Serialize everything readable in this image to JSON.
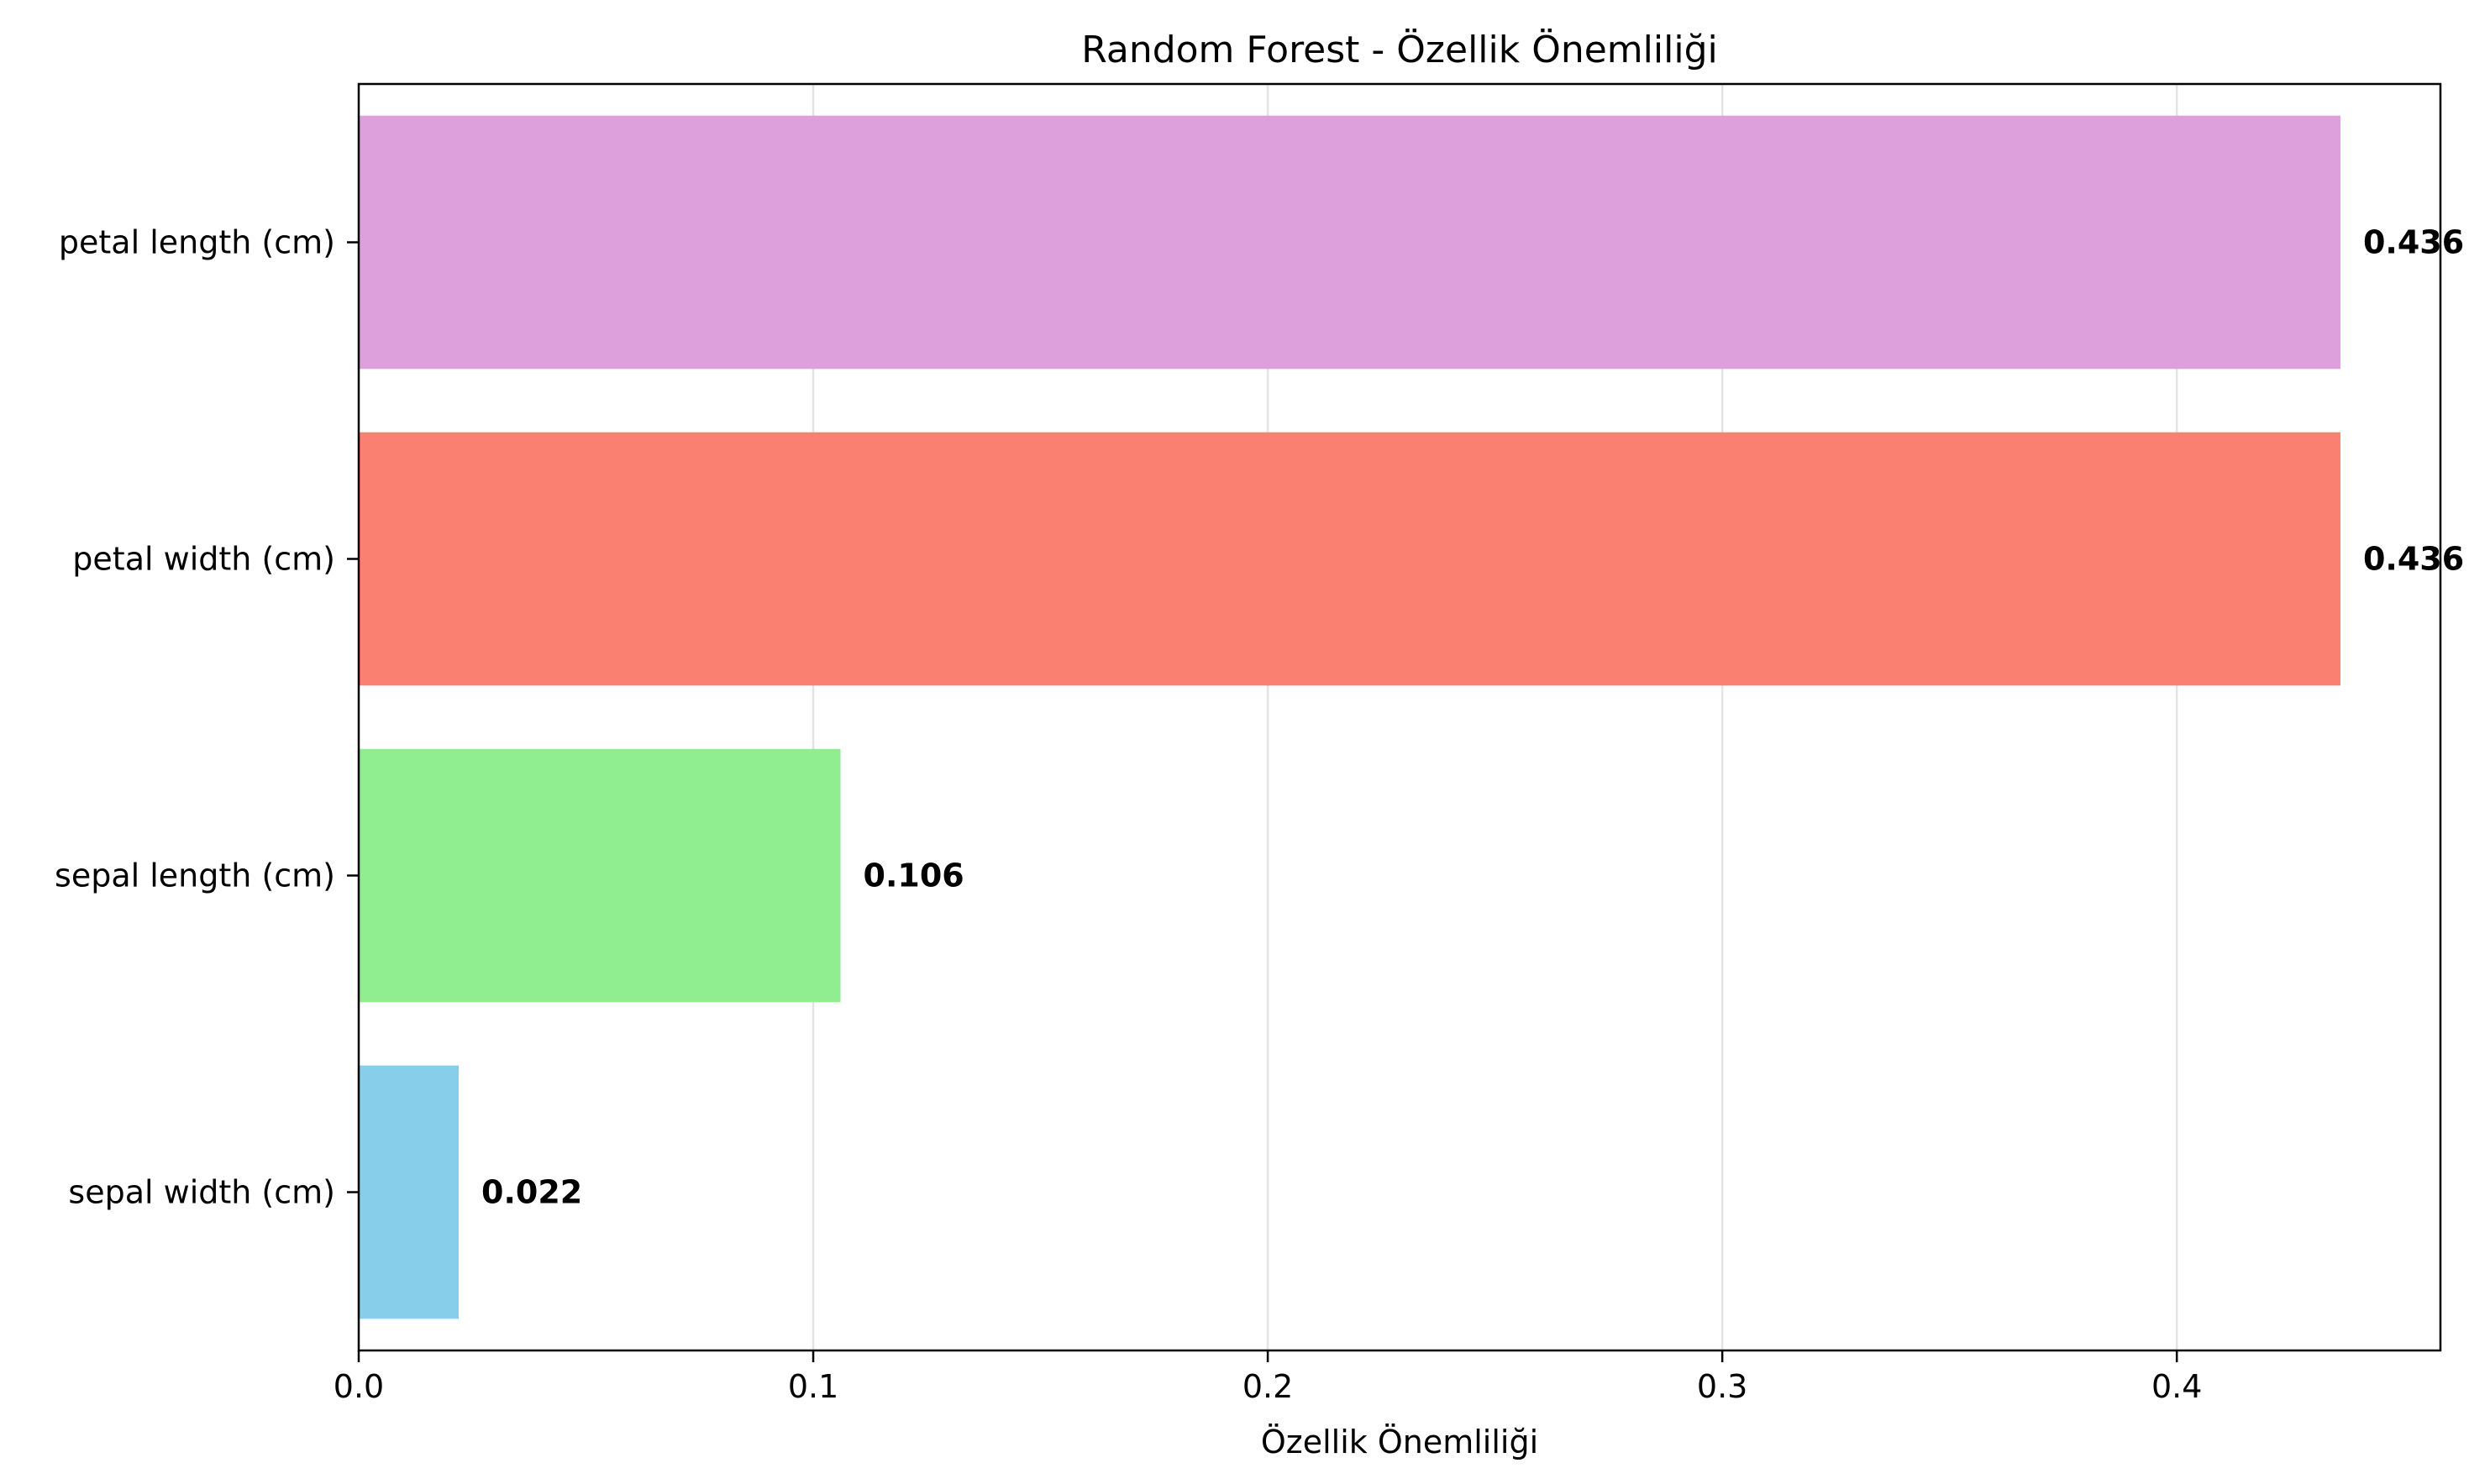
{
  "chart_data": {
    "type": "bar",
    "orientation": "horizontal",
    "title": "Random Forest - Özellik Önemliliği",
    "xlabel": "Özellik Önemliliği",
    "ylabel": "",
    "xlim": [
      0,
      0.458
    ],
    "x_ticks": [
      0.0,
      0.1,
      0.2,
      0.3,
      0.4
    ],
    "x_tick_labels": [
      "0.0",
      "0.1",
      "0.2",
      "0.3",
      "0.4"
    ],
    "grid": {
      "x": true,
      "y": false
    },
    "categories": [
      "petal length (cm)",
      "petal width (cm)",
      "sepal length (cm)",
      "sepal width (cm)"
    ],
    "values": [
      0.436,
      0.436,
      0.106,
      0.022
    ],
    "value_labels": [
      "0.436",
      "0.436",
      "0.106",
      "0.022"
    ],
    "colors": [
      "#dda0dd",
      "#fa8072",
      "#90ee90",
      "#87ceeb"
    ]
  }
}
